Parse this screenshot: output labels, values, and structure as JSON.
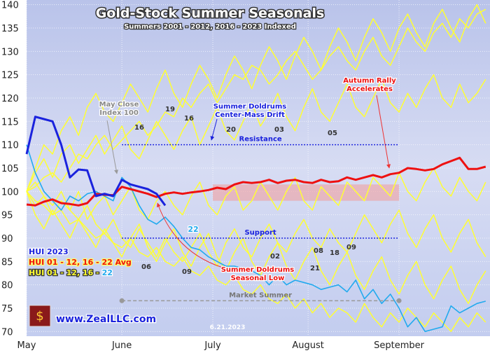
{
  "chart_data": {
    "type": "line",
    "title": "Gold-Stock Summer Seasonals",
    "subtitle": "Summers 2001 - 2012, 2016 - 2023 Indexed",
    "x": [
      0,
      2,
      4,
      6,
      8,
      10,
      12,
      14,
      16,
      18,
      20,
      22,
      24,
      26,
      28,
      30,
      32,
      34,
      36,
      38,
      40,
      42,
      44,
      46,
      48,
      50,
      52,
      54,
      56,
      58,
      60,
      62,
      64,
      66,
      68,
      70,
      72,
      74,
      76,
      78,
      80,
      82,
      84,
      86,
      88,
      90,
      92,
      94,
      96,
      98,
      100,
      102,
      104,
      106
    ],
    "xlim": [
      0,
      107
    ],
    "xticks": [
      {
        "value": 0,
        "label": "May"
      },
      {
        "value": 22,
        "label": "June"
      },
      {
        "value": 43,
        "label": "July"
      },
      {
        "value": 65,
        "label": "August"
      },
      {
        "value": 86,
        "label": "September"
      }
    ],
    "ylim": [
      69,
      141
    ],
    "yticks": [
      70,
      75,
      80,
      85,
      90,
      95,
      100,
      105,
      110,
      115,
      120,
      125,
      130,
      135,
      140
    ],
    "grid": true,
    "background_series": [
      {
        "color": "#ffff33",
        "values": [
          100,
          101,
          103,
          104,
          102,
          105,
          108,
          107,
          110,
          112,
          109,
          111,
          113,
          115,
          112,
          114,
          117,
          116,
          120,
          118,
          121,
          123,
          119,
          122,
          125,
          124,
          127,
          126,
          123,
          125,
          128,
          130,
          127,
          124,
          126,
          129,
          131,
          128,
          126,
          130,
          133,
          129,
          127,
          131,
          135,
          132,
          130,
          134,
          136,
          133,
          137,
          135,
          138,
          139
        ]
      },
      {
        "color": "#ffff33",
        "values": [
          100,
          98,
          97,
          95,
          96,
          93,
          94,
          92,
          90,
          91,
          89,
          88,
          90,
          87,
          86,
          88,
          85,
          84,
          86,
          83,
          82,
          84,
          81,
          80,
          82,
          79,
          78,
          80,
          77,
          76,
          78,
          75,
          77,
          74,
          76,
          73,
          75,
          74,
          72,
          76,
          73,
          71,
          74,
          72,
          75,
          73,
          71,
          74,
          72,
          70,
          73,
          71,
          74,
          72
        ]
      },
      {
        "color": "#ffff33",
        "values": [
          100,
          104,
          107,
          103,
          108,
          110,
          106,
          109,
          112,
          108,
          111,
          114,
          109,
          107,
          111,
          115,
          112,
          109,
          113,
          116,
          110,
          114,
          118,
          113,
          111,
          115,
          119,
          114,
          117,
          121,
          116,
          113,
          118,
          122,
          117,
          115,
          119,
          123,
          118,
          116,
          120,
          124,
          119,
          117,
          121,
          118,
          122,
          125,
          120,
          118,
          123,
          119,
          121,
          124
        ]
      },
      {
        "color": "#ffff33",
        "values": [
          100,
          97,
          99,
          95,
          98,
          96,
          100,
          94,
          97,
          99,
          95,
          98,
          101,
          96,
          94,
          98,
          100,
          97,
          95,
          99,
          102,
          97,
          95,
          99,
          101,
          96,
          98,
          102,
          99,
          96,
          100,
          103,
          98,
          96,
          101,
          99,
          97,
          102,
          100,
          98,
          103,
          101,
          99,
          104,
          100,
          98,
          102,
          105,
          101,
          99,
          103,
          100,
          98,
          102
        ]
      },
      {
        "color": "#ffff33",
        "values": [
          100,
          102,
          99,
          97,
          100,
          96,
          94,
          97,
          93,
          91,
          94,
          90,
          88,
          92,
          89,
          86,
          90,
          87,
          85,
          88,
          91,
          87,
          84,
          89,
          92,
          88,
          86,
          90,
          93,
          89,
          87,
          91,
          94,
          90,
          88,
          92,
          89,
          87,
          91,
          95,
          92,
          89,
          93,
          96,
          91,
          88,
          92,
          95,
          90,
          87,
          91,
          94,
          89,
          86
        ]
      },
      {
        "color": "#ffff33",
        "values": [
          100,
          105,
          110,
          108,
          113,
          116,
          112,
          118,
          121,
          117,
          115,
          119,
          123,
          120,
          117,
          122,
          126,
          121,
          118,
          123,
          127,
          124,
          120,
          125,
          129,
          126,
          122,
          127,
          131,
          128,
          124,
          129,
          133,
          130,
          126,
          131,
          135,
          132,
          128,
          133,
          137,
          134,
          130,
          135,
          138,
          134,
          131,
          136,
          139,
          135,
          132,
          137,
          140,
          136
        ]
      },
      {
        "color": "#ffff33",
        "values": [
          100,
          95,
          92,
          96,
          93,
          90,
          94,
          91,
          88,
          92,
          89,
          86,
          90,
          93,
          88,
          85,
          89,
          92,
          87,
          84,
          88,
          91,
          86,
          83,
          87,
          90,
          85,
          82,
          86,
          89,
          84,
          81,
          85,
          88,
          83,
          80,
          84,
          87,
          82,
          79,
          83,
          86,
          81,
          78,
          82,
          85,
          80,
          77,
          81,
          84,
          79,
          76,
          80,
          83
        ]
      }
    ],
    "series": [
      {
        "name": "22",
        "color": "#22aaee",
        "values": [
          110,
          104,
          100,
          98,
          96,
          99,
          98,
          99.5,
          100,
          99,
          98,
          103,
          101,
          97,
          94,
          93,
          94.5,
          92.5,
          90,
          88,
          87.5,
          86,
          85,
          84,
          84,
          83.5,
          83,
          82,
          80,
          82,
          80,
          81,
          80.5,
          80,
          79,
          79.5,
          80,
          78.5,
          81,
          77,
          79,
          76,
          78,
          75,
          71,
          73,
          70,
          70.5,
          71,
          75.5,
          74,
          75,
          76,
          76.5
        ]
      },
      {
        "name": "HUI 01 - 12, 16 - 22 Avg",
        "color": "#ee1111",
        "values": [
          97.2,
          97,
          97.8,
          98.3,
          97.5,
          97.3,
          97,
          97.5,
          99.5,
          99.3,
          99.2,
          101,
          100.5,
          100,
          99.5,
          98.8,
          99.5,
          99.8,
          99.5,
          99.8,
          100,
          100.3,
          100.8,
          100.5,
          101.5,
          102,
          101.8,
          102,
          102.5,
          101.8,
          102.3,
          102.5,
          102,
          101.8,
          102.5,
          102,
          102.2,
          103,
          102.5,
          103,
          103.5,
          103,
          103.7,
          104,
          105,
          104.8,
          104.5,
          104.8,
          105.8,
          106.5,
          107.2,
          104.8,
          104.8,
          105.3
        ]
      },
      {
        "name": "HUI 2023",
        "color": "#1a22dd",
        "x": [
          0,
          2,
          4,
          6,
          8,
          10,
          12,
          14,
          16,
          18,
          20,
          22,
          24,
          26,
          28,
          30,
          32
        ],
        "values": [
          108,
          116,
          115.5,
          115,
          110,
          103,
          104.7,
          104.5,
          99,
          99.5,
          99,
          102.5,
          101.5,
          101,
          100.5,
          99.5,
          97
        ]
      }
    ],
    "legend_prefix": "HUI 01 - 12, 16 -",
    "year_labels": [
      "16",
      "19",
      "16",
      "20",
      "03",
      "05",
      "02",
      "08",
      "18",
      "09",
      "06",
      "09",
      "21"
    ],
    "levels": [
      {
        "label": "Resistance",
        "value": 110,
        "from": 22,
        "to": 86,
        "color": "#1a22dd"
      },
      {
        "label": "Support",
        "value": 90,
        "from": 22,
        "to": 86,
        "color": "#1a22dd"
      },
      {
        "label": "Market Summer",
        "value": 76.6,
        "from": 22,
        "to": 86,
        "color": "#999999"
      }
    ],
    "band": {
      "ylim": [
        98,
        101.5
      ],
      "from": 43,
      "to": 86
    },
    "annotations": {
      "may_close": [
        "May Close",
        "Index 100"
      ],
      "drift": [
        "Summer Doldrums",
        "Center-Mass Drift"
      ],
      "autumn": [
        "Autumn Rally",
        "Accelerates"
      ],
      "low": [
        "Summer Doldrums",
        "Seasonal Low"
      ],
      "site": "www.ZealLLC.com",
      "date": "6.21.2023"
    }
  }
}
